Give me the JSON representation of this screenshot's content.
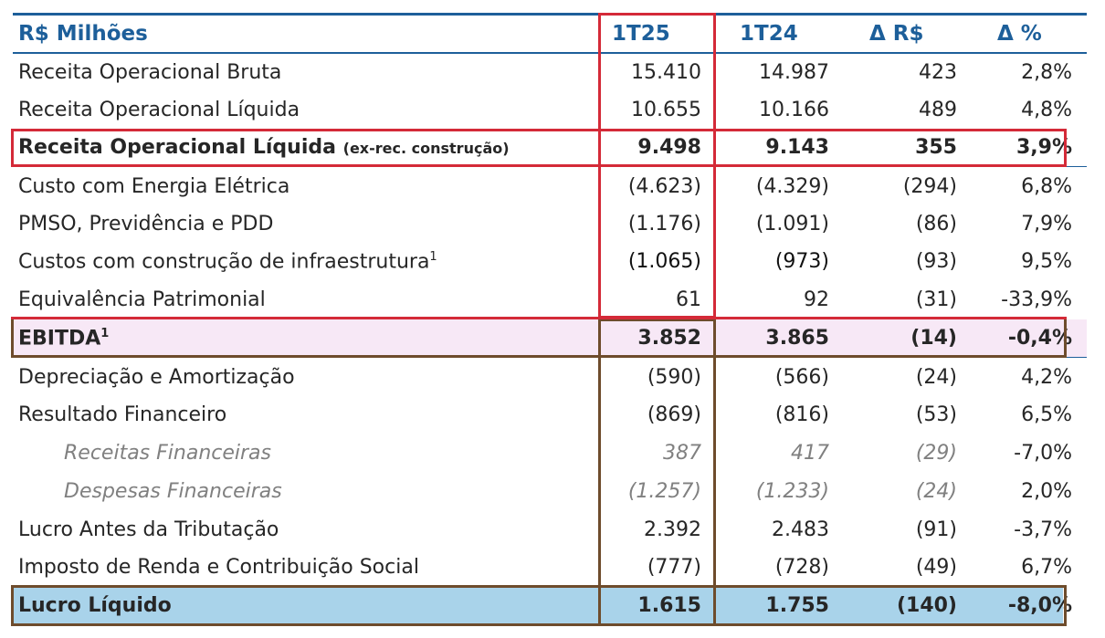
{
  "header": {
    "title": "R$ Milhões",
    "col_1t25": "1T25",
    "col_1t24": "1T24",
    "col_delta_rs": "Δ R$",
    "col_delta_pct": "Δ %"
  },
  "rows": [
    {
      "label": "Receita Operacional Bruta",
      "v1": "15.410",
      "v2": "14.987",
      "d": "423",
      "p": "2,8%"
    },
    {
      "label": "Receita Operacional Líquida",
      "v1": "10.655",
      "v2": "10.166",
      "d": "489",
      "p": "4,8%"
    },
    {
      "label": "Receita Operacional Líquida",
      "label_suffix": "(ex-rec. construção)",
      "v1": "9.498",
      "v2": "9.143",
      "d": "355",
      "p": "3,9%"
    },
    {
      "label": "Custo com Energia Elétrica",
      "v1": "(4.623)",
      "v2": "(4.329)",
      "d": "(294)",
      "p": "6,8%"
    },
    {
      "label": "PMSO, Previdência e PDD",
      "v1": "(1.176)",
      "v2": "(1.091)",
      "d": "(86)",
      "p": "7,9%"
    },
    {
      "label": "Custos com construção de infraestrutura",
      "label_sup": "1",
      "v1": "(1.065)",
      "v2": "(973)",
      "d": "(93)",
      "p": "9,5%"
    },
    {
      "label": "Equivalência Patrimonial",
      "v1": "61",
      "v2": "92",
      "d": "(31)",
      "p": "-33,9%"
    },
    {
      "label": "EBITDA",
      "label_sup": "1",
      "v1": "3.852",
      "v2": "3.865",
      "d": "(14)",
      "p": "-0,4%"
    },
    {
      "label": "Depreciação e Amortização",
      "v1": "(590)",
      "v2": "(566)",
      "d": "(24)",
      "p": "4,2%"
    },
    {
      "label": "Resultado Financeiro",
      "v1": "(869)",
      "v2": "(816)",
      "d": "(53)",
      "p": "6,5%"
    },
    {
      "label": "Receitas Financeiras",
      "v1": "387",
      "v2": "417",
      "d": "(29)",
      "p": "-7,0%"
    },
    {
      "label": "Despesas Financeiras",
      "v1": "(1.257)",
      "v2": "(1.233)",
      "d": "(24)",
      "p": "2,0%"
    },
    {
      "label": "Lucro Antes da Tributação",
      "v1": "2.392",
      "v2": "2.483",
      "d": "(91)",
      "p": "-3,7%"
    },
    {
      "label": "Imposto de Renda e Contribuição Social",
      "v1": "(777)",
      "v2": "(728)",
      "d": "(49)",
      "p": "6,7%"
    },
    {
      "label": "Lucro Líquido",
      "v1": "1.615",
      "v2": "1.755",
      "d": "(140)",
      "p": "-8,0%"
    }
  ],
  "colors": {
    "header_blue": "#1d5f9a",
    "highlight_red": "#d42a38",
    "highlight_brown": "#6e4c2c",
    "net_income_fill": "#a9d3ea"
  }
}
